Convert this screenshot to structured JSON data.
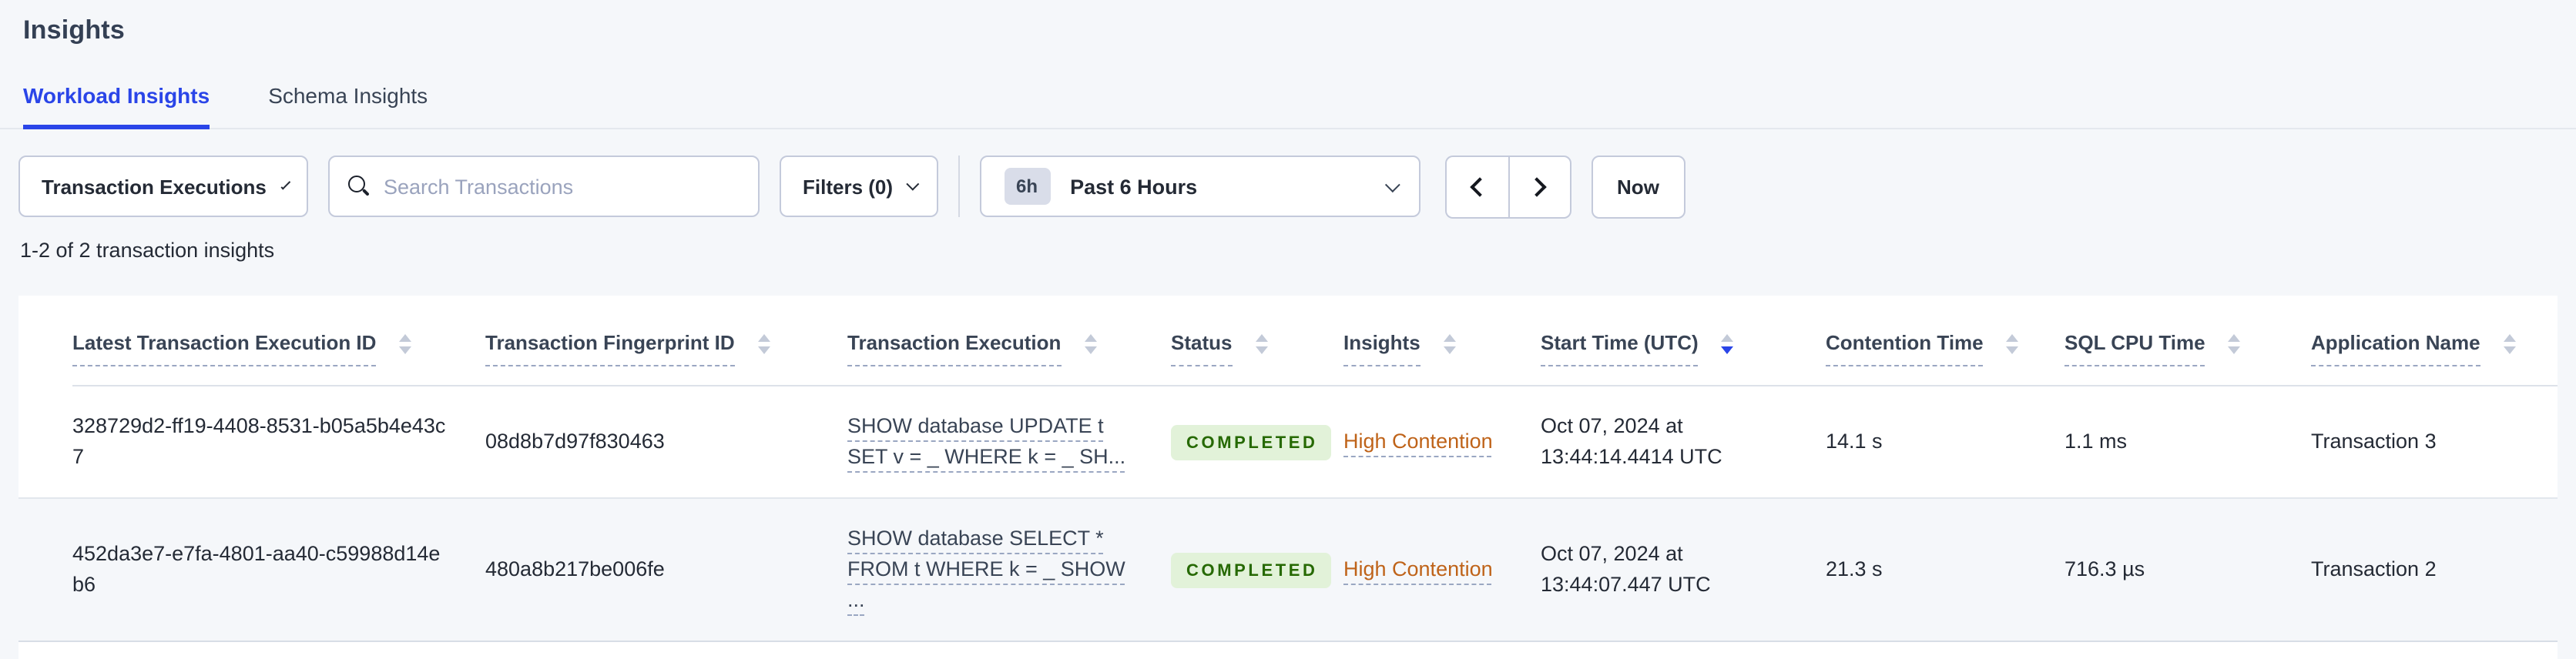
{
  "page": {
    "title": "Insights",
    "summary": "1-2 of 2 transaction insights"
  },
  "tabs": {
    "workload": "Workload Insights",
    "schema": "Schema Insights"
  },
  "toolbar": {
    "type_dropdown": "Transaction Executions",
    "search_placeholder": "Search Transactions",
    "filters": "Filters (0)",
    "time_range_badge": "6h",
    "time_range": "Past 6 Hours",
    "now": "Now"
  },
  "colors": {
    "accent_blue": "#2a45e8",
    "page_background": "#f5f7fa",
    "status_green_text": "#266902",
    "status_green_bg": "#e2f2d9",
    "insight_orange": "#bf6319"
  },
  "table": {
    "columns": [
      {
        "label": "Latest Transaction Execution ID",
        "sort": "none"
      },
      {
        "label": "Transaction Fingerprint ID",
        "sort": "none"
      },
      {
        "label": "Transaction Execution",
        "sort": "none"
      },
      {
        "label": "Status",
        "sort": "none"
      },
      {
        "label": "Insights",
        "sort": "none"
      },
      {
        "label": "Start Time (UTC)",
        "sort": "desc"
      },
      {
        "label": "Contention Time",
        "sort": "none"
      },
      {
        "label": "SQL CPU Time",
        "sort": "none"
      },
      {
        "label": "Application Name",
        "sort": "none"
      }
    ],
    "rows": [
      {
        "execution_id": "328729d2-ff19-4408-8531-b05a5b4e43c7",
        "fingerprint_id": "08d8b7d97f830463",
        "execution": "SHOW database UPDATE t SET v = _ WHERE k = _ SH...",
        "status": "COMPLETED",
        "insight": "High Contention",
        "start_time": "Oct 07, 2024 at 13:44:14.4414 UTC",
        "contention_time": "14.1 s",
        "sql_cpu_time": "1.1 ms",
        "application": "Transaction 3"
      },
      {
        "execution_id": "452da3e7-e7fa-4801-aa40-c59988d14eb6",
        "fingerprint_id": "480a8b217be006fe",
        "execution": "SHOW database SELECT * FROM t WHERE k = _ SHOW ...",
        "status": "COMPLETED",
        "insight": "High Contention",
        "start_time": "Oct 07, 2024 at 13:44:07.447 UTC",
        "contention_time": "21.3 s",
        "sql_cpu_time": "716.3 µs",
        "application": "Transaction 2"
      }
    ]
  }
}
